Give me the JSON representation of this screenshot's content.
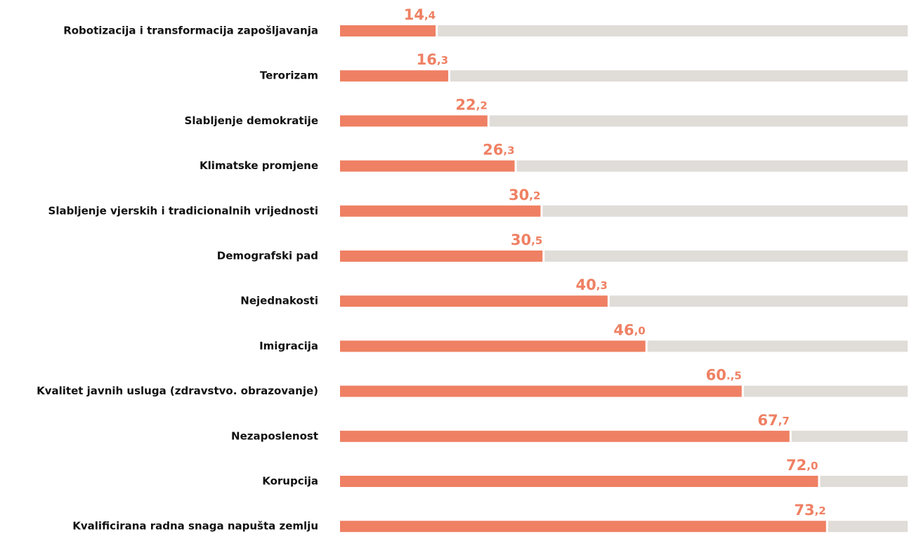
{
  "chart_data": {
    "type": "bar",
    "orientation": "horizontal",
    "categories": [
      "Robotizacija i transformacija zapošljavanja",
      "Terorizam",
      "Slabljenje demokratije",
      "Klimatske promjene",
      "Slabljenje vjerskih i tradicionalnih vrijednosti",
      "Demografski pad",
      "Nejednakosti",
      "Imigracija",
      "Kvalitet javnih usluga (zdravstvo. obrazovanje)",
      "Nezaposlenost",
      "Korupcija",
      "Kvalificirana radna snaga napušta zemlju"
    ],
    "values": [
      14.4,
      16.3,
      22.2,
      26.3,
      30.2,
      30.5,
      40.3,
      46.0,
      60.5,
      67.7,
      72.0,
      73.2
    ],
    "value_labels": [
      "14,4",
      "16,3",
      "22,2",
      "26,3",
      "30,2",
      "30,5",
      "40,3",
      "46,0",
      "60.,5",
      "67,7",
      "72,0",
      "73,2"
    ],
    "color": "#ef8063",
    "track_color": "#e0dcd8",
    "xlim": [
      0,
      85.5
    ]
  }
}
